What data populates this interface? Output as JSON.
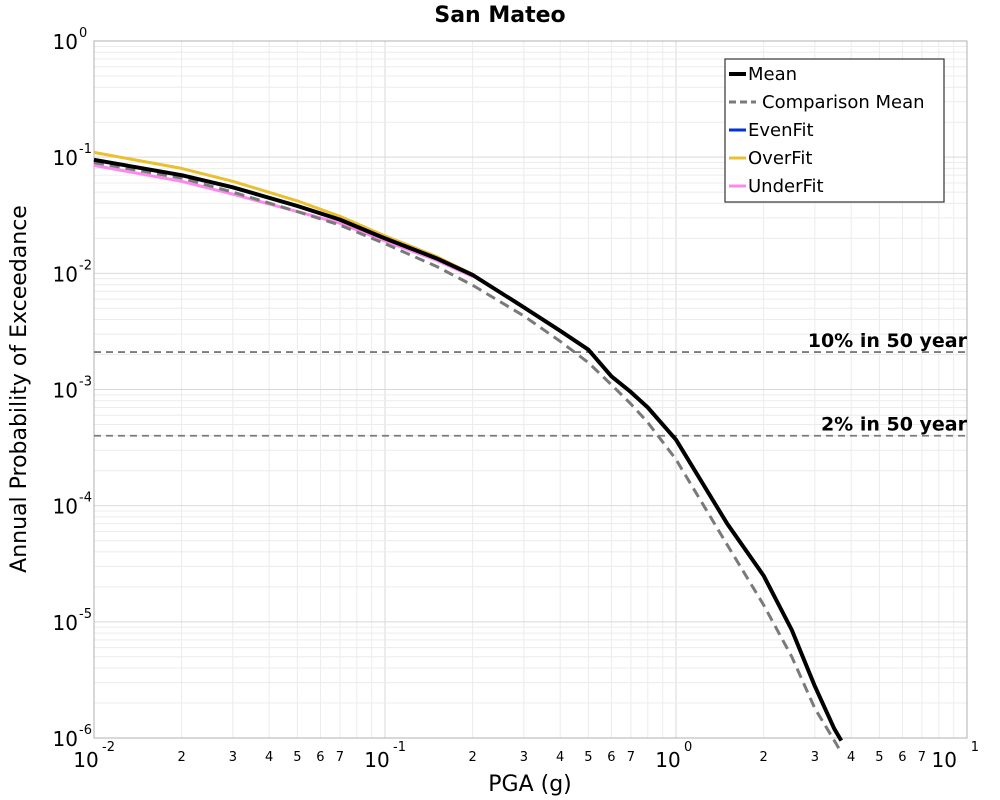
{
  "chart_data": {
    "type": "line",
    "title": "San Mateo",
    "xlabel": "PGA (g)",
    "ylabel": "Annual Probability of Exceedance",
    "xscale": "log",
    "yscale": "log",
    "xlim": [
      0.01,
      10
    ],
    "ylim": [
      1e-06,
      1
    ],
    "grid": true,
    "legend_position": "top-right",
    "x_major_ticks": [
      {
        "base": "10",
        "exp": "-2"
      },
      {
        "base": "10",
        "exp": "-1"
      },
      {
        "base": "10",
        "exp": "0"
      },
      {
        "base": "10",
        "exp": "1"
      }
    ],
    "y_major_ticks": [
      {
        "base": "10",
        "exp": "-6"
      },
      {
        "base": "10",
        "exp": "-5"
      },
      {
        "base": "10",
        "exp": "-4"
      },
      {
        "base": "10",
        "exp": "-3"
      },
      {
        "base": "10",
        "exp": "-2"
      },
      {
        "base": "10",
        "exp": "-1"
      },
      {
        "base": "10",
        "exp": "0"
      }
    ],
    "x_minor_tick_labels": [
      "2",
      "3",
      "4",
      "5",
      "6",
      "7"
    ],
    "series": [
      {
        "name": "Mean",
        "color": "#000000",
        "dash": "solid",
        "x": [
          0.01,
          0.02,
          0.03,
          0.05,
          0.07,
          0.1,
          0.15,
          0.2,
          0.3,
          0.4,
          0.5,
          0.6,
          0.7,
          0.8,
          1.0,
          1.5,
          2.0,
          2.5,
          3.0,
          3.5,
          3.7
        ],
        "y": [
          0.095,
          0.07,
          0.055,
          0.038,
          0.029,
          0.02,
          0.0135,
          0.0097,
          0.0051,
          0.0032,
          0.0022,
          0.0013,
          0.00095,
          0.0007,
          0.00037,
          7e-05,
          2.5e-05,
          8.5e-06,
          2.8e-06,
          1.2e-06,
          9.5e-07
        ]
      },
      {
        "name": "Comparison Mean",
        "color": "#7a7a7a",
        "dash": "dashed",
        "x": [
          0.01,
          0.02,
          0.03,
          0.05,
          0.07,
          0.1,
          0.15,
          0.2,
          0.3,
          0.4,
          0.5,
          0.6,
          0.7,
          0.8,
          1.0,
          1.5,
          2.0,
          2.5,
          3.0,
          3.5,
          3.7
        ],
        "y": [
          0.09,
          0.066,
          0.05,
          0.034,
          0.026,
          0.018,
          0.0115,
          0.0079,
          0.0043,
          0.0026,
          0.0017,
          0.0011,
          0.00075,
          0.00052,
          0.00025,
          4.6e-05,
          1.4e-05,
          5e-06,
          1.8e-06,
          9.5e-07,
          7.5e-07
        ]
      },
      {
        "name": "EvenFit",
        "color": "#0033dd",
        "dash": "solid",
        "x": [
          0.01,
          0.02,
          0.03,
          0.05,
          0.07,
          0.1,
          0.15,
          0.2,
          0.3
        ],
        "y": [
          0.095,
          0.07,
          0.055,
          0.038,
          0.029,
          0.02,
          0.0135,
          0.0097,
          0.0051
        ]
      },
      {
        "name": "OverFit",
        "color": "#e8c030",
        "dash": "solid",
        "x": [
          0.01,
          0.02,
          0.03,
          0.05,
          0.07,
          0.1,
          0.15,
          0.2
        ],
        "y": [
          0.11,
          0.08,
          0.062,
          0.042,
          0.031,
          0.021,
          0.014,
          0.0098
        ]
      },
      {
        "name": "UnderFit",
        "color": "#ff88ee",
        "dash": "solid",
        "x": [
          0.01,
          0.02,
          0.03,
          0.05,
          0.07,
          0.1,
          0.15,
          0.2
        ],
        "y": [
          0.085,
          0.062,
          0.048,
          0.034,
          0.027,
          0.019,
          0.013,
          0.0094
        ]
      }
    ],
    "reference_lines": [
      {
        "label": "10% in 50 year",
        "y": 0.0021,
        "color": "#7a7a7a"
      },
      {
        "label": "2% in 50 year",
        "y": 0.0004,
        "color": "#7a7a7a"
      }
    ]
  }
}
